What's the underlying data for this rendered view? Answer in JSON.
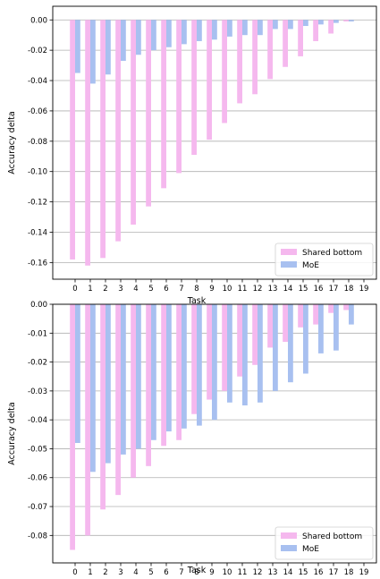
{
  "charts": [
    {
      "type": "bar",
      "xlabel": "Task",
      "ylabel": "Accuracy delta",
      "categories": [
        "0",
        "1",
        "2",
        "3",
        "4",
        "5",
        "6",
        "7",
        "8",
        "9",
        "10",
        "11",
        "12",
        "13",
        "14",
        "15",
        "16",
        "17",
        "18",
        "19"
      ],
      "ylim": [
        -0.171,
        0.009
      ],
      "yticks": [
        0.0,
        -0.02,
        -0.04,
        -0.06,
        -0.08,
        -0.1,
        -0.12,
        -0.14,
        -0.16
      ],
      "ytick_labels": [
        "0.00",
        "-0.02",
        "-0.04",
        "-0.06",
        "-0.08",
        "-0.10",
        "-0.12",
        "-0.14",
        "-0.16"
      ],
      "grid": true,
      "legend": "bottom-right",
      "series": [
        {
          "name": "Shared bottom",
          "color": "#f5b8ee",
          "values": [
            -0.158,
            -0.162,
            -0.157,
            -0.146,
            -0.135,
            -0.123,
            -0.111,
            -0.101,
            -0.089,
            -0.079,
            -0.068,
            -0.055,
            -0.049,
            -0.039,
            -0.031,
            -0.024,
            -0.014,
            -0.009,
            -0.001,
            0.0
          ]
        },
        {
          "name": "MoE",
          "color": "#a8c0f0",
          "values": [
            -0.035,
            -0.042,
            -0.036,
            -0.027,
            -0.023,
            -0.02,
            -0.018,
            -0.016,
            -0.014,
            -0.013,
            -0.011,
            -0.01,
            -0.01,
            -0.006,
            -0.006,
            -0.004,
            -0.003,
            -0.002,
            -0.001,
            0.0
          ]
        }
      ]
    },
    {
      "type": "bar",
      "xlabel": "Task",
      "ylabel": "Accuracy delta",
      "categories": [
        "0",
        "1",
        "2",
        "3",
        "4",
        "5",
        "6",
        "7",
        "8",
        "9",
        "10",
        "11",
        "12",
        "13",
        "14",
        "15",
        "16",
        "17",
        "18",
        "19"
      ],
      "ylim": [
        -0.0895,
        0.0
      ],
      "yticks": [
        0.0,
        -0.01,
        -0.02,
        -0.03,
        -0.04,
        -0.05,
        -0.06,
        -0.07,
        -0.08
      ],
      "ytick_labels": [
        "0.00",
        "-0.01",
        "-0.02",
        "-0.03",
        "-0.04",
        "-0.05",
        "-0.06",
        "-0.07",
        "-0.08"
      ],
      "grid": true,
      "legend": "bottom-right",
      "series": [
        {
          "name": "Shared bottom",
          "color": "#f5b8ee",
          "values": [
            -0.085,
            -0.08,
            -0.071,
            -0.066,
            -0.06,
            -0.056,
            -0.049,
            -0.047,
            -0.038,
            -0.033,
            -0.03,
            -0.025,
            -0.021,
            -0.015,
            -0.013,
            -0.008,
            -0.007,
            -0.003,
            -0.002,
            0.0
          ]
        },
        {
          "name": "MoE",
          "color": "#a8c0f0",
          "values": [
            -0.048,
            -0.058,
            -0.055,
            -0.052,
            -0.05,
            -0.047,
            -0.044,
            -0.043,
            -0.042,
            -0.04,
            -0.034,
            -0.035,
            -0.034,
            -0.03,
            -0.027,
            -0.024,
            -0.017,
            -0.016,
            -0.007,
            0.0
          ]
        }
      ]
    }
  ]
}
